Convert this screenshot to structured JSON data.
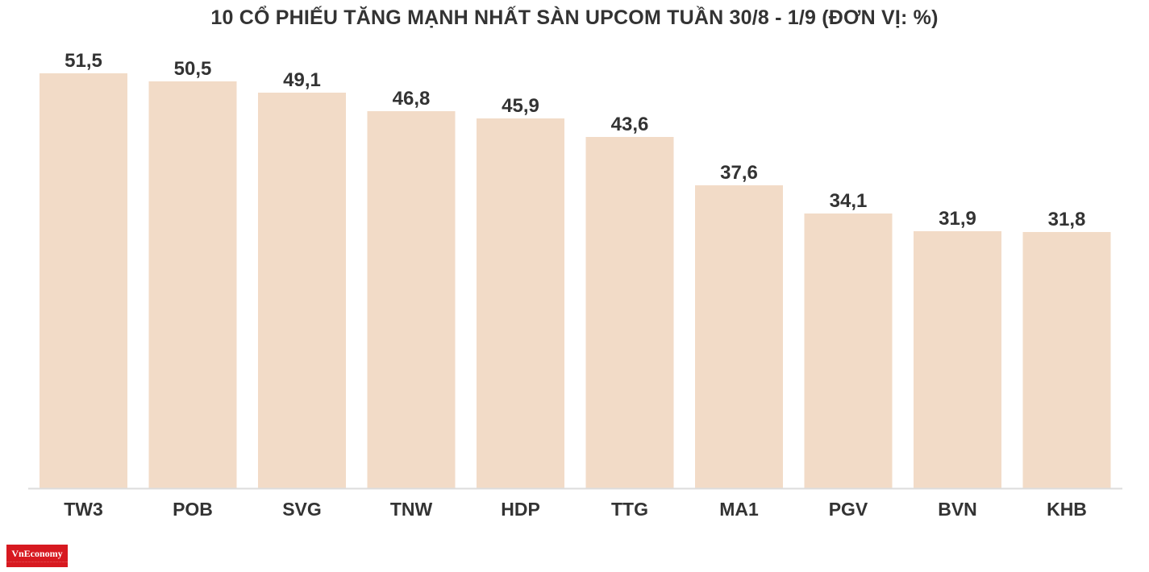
{
  "chart_data": {
    "type": "bar",
    "title": "10 CỔ PHIẾU TĂNG MẠNH NHẤT SÀN UPCOM TUẦN 30/8 - 1/9 (ĐƠN VỊ: %)",
    "categories": [
      "TW3",
      "POB",
      "SVG",
      "TNW",
      "HDP",
      "TTG",
      "MA1",
      "PGV",
      "BVN",
      "KHB"
    ],
    "values": [
      51.5,
      50.5,
      49.1,
      46.8,
      45.9,
      43.6,
      37.6,
      34.1,
      31.9,
      31.8
    ],
    "value_labels": [
      "51,5",
      "50,5",
      "49,1",
      "46,8",
      "45,9",
      "43,6",
      "37,6",
      "34,1",
      "31,9",
      "31,8"
    ],
    "xlabel": "",
    "ylabel": "",
    "ylim": [
      0,
      52
    ],
    "grid": false,
    "legend": "none",
    "bar_color": "#f2dbc7",
    "axis_color": "#dcdcdc",
    "label_color": "#333333"
  },
  "branding": {
    "logo_text": "VnEconomy",
    "logo_color": "#d71920"
  }
}
